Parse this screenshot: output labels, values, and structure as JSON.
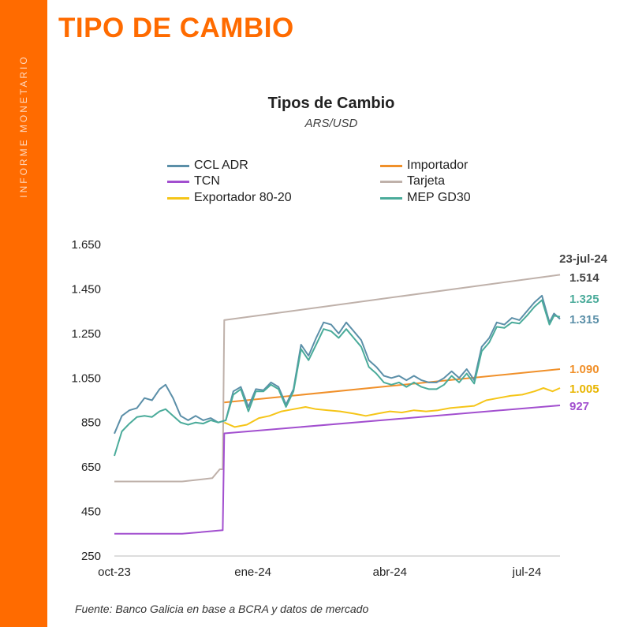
{
  "header": {
    "side_label": "INFORME MONETARIO",
    "section_title": "TIPO DE CAMBIO"
  },
  "colors": {
    "accent": "#ff6b00"
  },
  "chart_data": {
    "type": "line",
    "title": "Tipos de Cambio",
    "subtitle": "ARS/USD",
    "x_ticks": [
      "oct-23",
      "ene-24",
      "abr-24",
      "jul-24"
    ],
    "x_range": [
      "2023-10-01",
      "2024-07-23"
    ],
    "ylim": [
      250,
      1650
    ],
    "y_ticks": [
      "250",
      "450",
      "650",
      "850",
      "1.050",
      "1.250",
      "1.450",
      "1.650"
    ],
    "legend_placement": "top",
    "date_label": "23-jul-24",
    "series": [
      {
        "name": "CCL ADR",
        "color": "#5b8fa8",
        "end_label": "1.315",
        "points": [
          [
            "2023-10-01",
            800
          ],
          [
            "2023-10-06",
            880
          ],
          [
            "2023-10-11",
            905
          ],
          [
            "2023-10-16",
            915
          ],
          [
            "2023-10-21",
            960
          ],
          [
            "2023-10-26",
            950
          ],
          [
            "2023-10-31",
            1000
          ],
          [
            "2023-11-04",
            1020
          ],
          [
            "2023-11-09",
            960
          ],
          [
            "2023-11-14",
            880
          ],
          [
            "2023-11-19",
            860
          ],
          [
            "2023-11-24",
            880
          ],
          [
            "2023-11-29",
            860
          ],
          [
            "2023-12-04",
            870
          ],
          [
            "2023-12-09",
            850
          ],
          [
            "2023-12-14",
            860
          ],
          [
            "2023-12-19",
            990
          ],
          [
            "2023-12-24",
            1010
          ],
          [
            "2023-12-29",
            920
          ],
          [
            "2024-01-03",
            1000
          ],
          [
            "2024-01-08",
            995
          ],
          [
            "2024-01-13",
            1030
          ],
          [
            "2024-01-18",
            1010
          ],
          [
            "2024-01-23",
            930
          ],
          [
            "2024-01-28",
            1000
          ],
          [
            "2024-02-02",
            1200
          ],
          [
            "2024-02-07",
            1150
          ],
          [
            "2024-02-12",
            1230
          ],
          [
            "2024-02-17",
            1300
          ],
          [
            "2024-02-22",
            1290
          ],
          [
            "2024-02-27",
            1250
          ],
          [
            "2024-03-03",
            1300
          ],
          [
            "2024-03-08",
            1260
          ],
          [
            "2024-03-13",
            1220
          ],
          [
            "2024-03-18",
            1130
          ],
          [
            "2024-03-23",
            1100
          ],
          [
            "2024-03-28",
            1060
          ],
          [
            "2024-04-02",
            1050
          ],
          [
            "2024-04-07",
            1060
          ],
          [
            "2024-04-12",
            1040
          ],
          [
            "2024-04-17",
            1060
          ],
          [
            "2024-04-22",
            1040
          ],
          [
            "2024-04-27",
            1030
          ],
          [
            "2024-05-02",
            1030
          ],
          [
            "2024-05-07",
            1050
          ],
          [
            "2024-05-12",
            1080
          ],
          [
            "2024-05-17",
            1050
          ],
          [
            "2024-05-22",
            1090
          ],
          [
            "2024-05-27",
            1040
          ],
          [
            "2024-06-01",
            1190
          ],
          [
            "2024-06-06",
            1230
          ],
          [
            "2024-06-11",
            1300
          ],
          [
            "2024-06-16",
            1290
          ],
          [
            "2024-06-21",
            1320
          ],
          [
            "2024-06-26",
            1310
          ],
          [
            "2024-07-01",
            1350
          ],
          [
            "2024-07-06",
            1390
          ],
          [
            "2024-07-11",
            1420
          ],
          [
            "2024-07-16",
            1300
          ],
          [
            "2024-07-19",
            1340
          ],
          [
            "2024-07-23",
            1315
          ]
        ]
      },
      {
        "name": "Importador",
        "color": "#f0902a",
        "end_label": "1.090",
        "points": [
          [
            "2023-12-13",
            940
          ],
          [
            "2024-07-23",
            1090
          ]
        ]
      },
      {
        "name": "TCN",
        "color": "#a24fcf",
        "end_label": "927",
        "points": [
          [
            "2023-10-01",
            350
          ],
          [
            "2023-11-15",
            350
          ],
          [
            "2023-12-12",
            366
          ],
          [
            "2023-12-13",
            801
          ],
          [
            "2024-07-23",
            927
          ]
        ]
      },
      {
        "name": "Tarjeta",
        "color": "#bfb1aa",
        "end_label": "1.514",
        "points": [
          [
            "2023-10-01",
            585
          ],
          [
            "2023-11-15",
            585
          ],
          [
            "2023-12-05",
            600
          ],
          [
            "2023-12-10",
            640
          ],
          [
            "2023-12-12",
            640
          ],
          [
            "2023-12-13",
            1310
          ],
          [
            "2024-07-23",
            1514
          ]
        ]
      },
      {
        "name": "Exportador 80-20",
        "color": "#f5c518",
        "end_label": "1.005",
        "points": [
          [
            "2023-12-13",
            850
          ],
          [
            "2023-12-20",
            830
          ],
          [
            "2023-12-28",
            840
          ],
          [
            "2024-01-05",
            870
          ],
          [
            "2024-01-12",
            880
          ],
          [
            "2024-01-20",
            900
          ],
          [
            "2024-01-28",
            910
          ],
          [
            "2024-02-05",
            920
          ],
          [
            "2024-02-12",
            910
          ],
          [
            "2024-02-20",
            905
          ],
          [
            "2024-02-28",
            900
          ],
          [
            "2024-03-08",
            890
          ],
          [
            "2024-03-16",
            880
          ],
          [
            "2024-03-24",
            890
          ],
          [
            "2024-04-01",
            900
          ],
          [
            "2024-04-09",
            895
          ],
          [
            "2024-04-17",
            905
          ],
          [
            "2024-04-25",
            900
          ],
          [
            "2024-05-03",
            905
          ],
          [
            "2024-05-11",
            915
          ],
          [
            "2024-05-19",
            920
          ],
          [
            "2024-05-27",
            925
          ],
          [
            "2024-06-04",
            950
          ],
          [
            "2024-06-12",
            960
          ],
          [
            "2024-06-20",
            970
          ],
          [
            "2024-06-28",
            975
          ],
          [
            "2024-07-06",
            990
          ],
          [
            "2024-07-12",
            1005
          ],
          [
            "2024-07-18",
            990
          ],
          [
            "2024-07-23",
            1005
          ]
        ]
      },
      {
        "name": "MEP GD30",
        "color": "#4aab9a",
        "end_label": "1.325",
        "points": [
          [
            "2023-10-01",
            700
          ],
          [
            "2023-10-06",
            810
          ],
          [
            "2023-10-11",
            845
          ],
          [
            "2023-10-16",
            875
          ],
          [
            "2023-10-21",
            880
          ],
          [
            "2023-10-26",
            875
          ],
          [
            "2023-10-31",
            900
          ],
          [
            "2023-11-04",
            910
          ],
          [
            "2023-11-09",
            880
          ],
          [
            "2023-11-14",
            850
          ],
          [
            "2023-11-19",
            840
          ],
          [
            "2023-11-24",
            850
          ],
          [
            "2023-11-29",
            845
          ],
          [
            "2023-12-04",
            860
          ],
          [
            "2023-12-09",
            850
          ],
          [
            "2023-12-14",
            860
          ],
          [
            "2023-12-19",
            975
          ],
          [
            "2023-12-24",
            1000
          ],
          [
            "2023-12-29",
            900
          ],
          [
            "2024-01-03",
            990
          ],
          [
            "2024-01-08",
            990
          ],
          [
            "2024-01-13",
            1020
          ],
          [
            "2024-01-18",
            1000
          ],
          [
            "2024-01-23",
            920
          ],
          [
            "2024-01-28",
            990
          ],
          [
            "2024-02-02",
            1180
          ],
          [
            "2024-02-07",
            1130
          ],
          [
            "2024-02-12",
            1200
          ],
          [
            "2024-02-17",
            1270
          ],
          [
            "2024-02-22",
            1260
          ],
          [
            "2024-02-27",
            1230
          ],
          [
            "2024-03-03",
            1270
          ],
          [
            "2024-03-08",
            1230
          ],
          [
            "2024-03-13",
            1190
          ],
          [
            "2024-03-18",
            1100
          ],
          [
            "2024-03-23",
            1070
          ],
          [
            "2024-03-28",
            1030
          ],
          [
            "2024-04-02",
            1020
          ],
          [
            "2024-04-07",
            1030
          ],
          [
            "2024-04-12",
            1010
          ],
          [
            "2024-04-17",
            1030
          ],
          [
            "2024-04-22",
            1010
          ],
          [
            "2024-04-27",
            1000
          ],
          [
            "2024-05-02",
            1000
          ],
          [
            "2024-05-07",
            1020
          ],
          [
            "2024-05-12",
            1060
          ],
          [
            "2024-05-17",
            1030
          ],
          [
            "2024-05-22",
            1070
          ],
          [
            "2024-05-27",
            1025
          ],
          [
            "2024-06-01",
            1170
          ],
          [
            "2024-06-06",
            1210
          ],
          [
            "2024-06-11",
            1280
          ],
          [
            "2024-06-16",
            1275
          ],
          [
            "2024-06-21",
            1300
          ],
          [
            "2024-06-26",
            1295
          ],
          [
            "2024-07-01",
            1330
          ],
          [
            "2024-07-06",
            1370
          ],
          [
            "2024-07-11",
            1400
          ],
          [
            "2024-07-16",
            1290
          ],
          [
            "2024-07-19",
            1330
          ],
          [
            "2024-07-23",
            1325
          ]
        ]
      }
    ]
  },
  "footer": {
    "source": "Fuente: Banco Galicia en base a BCRA y datos de mercado"
  }
}
